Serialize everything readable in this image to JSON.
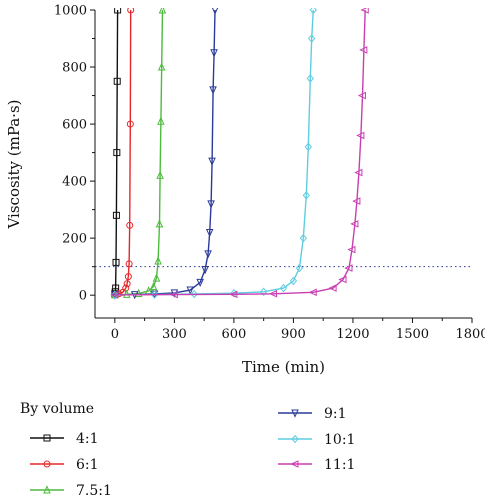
{
  "chart_data": {
    "type": "line",
    "xlabel": "Time (min)",
    "ylabel": "Viscosity (mPa·s)",
    "xlim": [
      -100,
      1800
    ],
    "ylim": [
      -80,
      1000
    ],
    "x_ticks": [
      0,
      300,
      600,
      900,
      1200,
      1500,
      1800
    ],
    "y_ticks": [
      0,
      200,
      400,
      600,
      800,
      1000
    ],
    "reference_line": {
      "y": 100,
      "style": "dotted",
      "color": "#2a3a9a"
    },
    "legend": {
      "title": "By volume",
      "placement": "below"
    },
    "series": [
      {
        "name": "4:1",
        "color": "#111111",
        "marker": "square",
        "x": [
          0,
          2,
          4,
          6,
          8,
          10,
          12,
          14
        ],
        "y": [
          5,
          12,
          25,
          115,
          280,
          500,
          750,
          1000
        ]
      },
      {
        "name": "6:1",
        "color": "#e8262a",
        "marker": "circle",
        "x": [
          0,
          20,
          40,
          55,
          62,
          68,
          72,
          75,
          78,
          80
        ],
        "y": [
          2,
          5,
          10,
          25,
          40,
          65,
          110,
          245,
          600,
          1000
        ]
      },
      {
        "name": "7.5:1",
        "color": "#4cbb3c",
        "marker": "triangle-up",
        "x": [
          0,
          60,
          120,
          170,
          195,
          210,
          218,
          225,
          228,
          232,
          236,
          240
        ],
        "y": [
          1,
          3,
          6,
          15,
          30,
          60,
          120,
          250,
          420,
          610,
          800,
          1000
        ]
      },
      {
        "name": "9:1",
        "color": "#2a3a9a",
        "marker": "triangle-down",
        "x": [
          0,
          100,
          200,
          300,
          380,
          430,
          455,
          470,
          478,
          485,
          490,
          495,
          500,
          505
        ],
        "y": [
          1,
          2,
          4,
          8,
          18,
          45,
          90,
          145,
          220,
          320,
          470,
          720,
          850,
          1000
        ]
      },
      {
        "name": "10:1",
        "color": "#5fcde0",
        "marker": "diamond",
        "x": [
          0,
          200,
          400,
          600,
          750,
          850,
          900,
          930,
          950,
          965,
          975,
          985,
          992,
          1000
        ],
        "y": [
          1,
          2,
          4,
          7,
          12,
          25,
          50,
          95,
          200,
          350,
          520,
          760,
          900,
          1000
        ]
      },
      {
        "name": "11:1",
        "color": "#c83fb2",
        "marker": "triangle-left",
        "x": [
          0,
          300,
          600,
          800,
          1000,
          1100,
          1150,
          1180,
          1195,
          1210,
          1220,
          1230,
          1240,
          1248,
          1255,
          1262
        ],
        "y": [
          1,
          2,
          3,
          5,
          10,
          25,
          55,
          95,
          160,
          250,
          330,
          430,
          560,
          700,
          860,
          1000
        ]
      }
    ]
  }
}
